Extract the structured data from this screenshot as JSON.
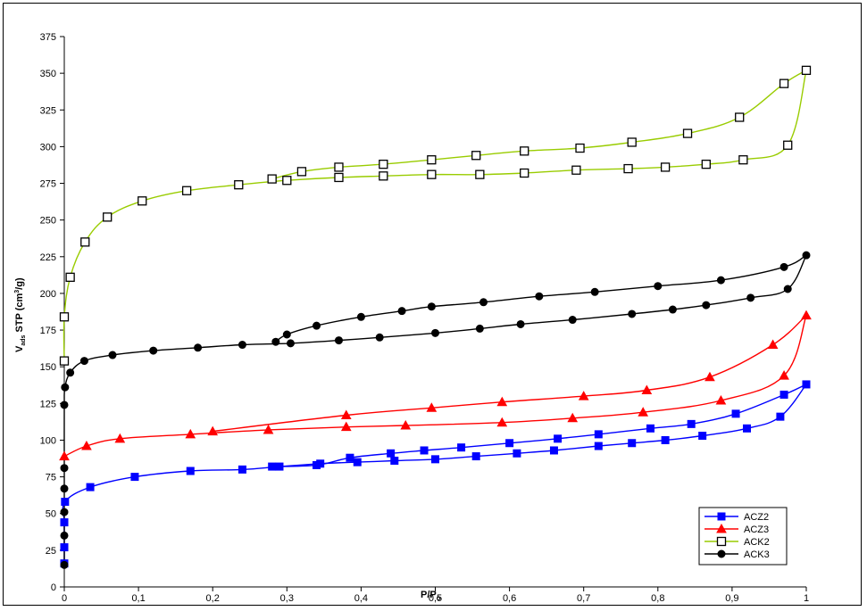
{
  "chart_data": {
    "type": "line",
    "title": "",
    "xlabel_main": "P/P",
    "xlabel_sub": "o",
    "ylabel_main": "V",
    "ylabel_sub": "ads",
    "ylabel_rest": " STP (cm",
    "ylabel_sup": "3",
    "ylabel_end": "/g)",
    "xlim": [
      0,
      1
    ],
    "ylim": [
      0,
      375
    ],
    "xticks": [
      "0",
      "0,1",
      "0,2",
      "0,3",
      "0,4",
      "0,5",
      "0,6",
      "0,7",
      "0,8",
      "0,9",
      "1"
    ],
    "yticks": [
      "0",
      "25",
      "50",
      "75",
      "100",
      "125",
      "150",
      "175",
      "200",
      "225",
      "250",
      "275",
      "300",
      "325",
      "350",
      "375"
    ],
    "grid": false,
    "legend_position": "bottom-right",
    "series": [
      {
        "name": "ACZ2",
        "color": "#0000ff",
        "marker": "square-filled",
        "adsorption": [
          [
            0.0,
            16
          ],
          [
            0.0,
            27
          ],
          [
            0.0,
            44
          ],
          [
            0.001,
            58
          ],
          [
            0.035,
            68
          ],
          [
            0.095,
            75
          ],
          [
            0.17,
            79
          ],
          [
            0.24,
            80
          ],
          [
            0.29,
            82
          ],
          [
            0.345,
            84
          ],
          [
            0.395,
            85
          ],
          [
            0.445,
            86
          ],
          [
            0.5,
            87
          ],
          [
            0.555,
            89
          ],
          [
            0.61,
            91
          ],
          [
            0.66,
            93
          ],
          [
            0.72,
            96
          ],
          [
            0.765,
            98
          ],
          [
            0.81,
            100
          ],
          [
            0.86,
            103
          ],
          [
            0.92,
            108
          ],
          [
            0.965,
            116
          ],
          [
            1.0,
            138
          ]
        ],
        "desorption": [
          [
            1.0,
            138
          ],
          [
            0.97,
            131
          ],
          [
            0.905,
            118
          ],
          [
            0.845,
            111
          ],
          [
            0.79,
            108
          ],
          [
            0.72,
            104
          ],
          [
            0.665,
            101
          ],
          [
            0.6,
            98
          ],
          [
            0.535,
            95
          ],
          [
            0.485,
            93
          ],
          [
            0.44,
            91
          ],
          [
            0.385,
            88
          ],
          [
            0.34,
            83
          ],
          [
            0.28,
            82
          ]
        ]
      },
      {
        "name": "ACZ3",
        "color": "#ff0000",
        "marker": "triangle-filled",
        "adsorption": [
          [
            0.0,
            89
          ],
          [
            0.03,
            96
          ],
          [
            0.075,
            101
          ],
          [
            0.17,
            104
          ],
          [
            0.275,
            107
          ],
          [
            0.38,
            109
          ],
          [
            0.46,
            110
          ],
          [
            0.59,
            112
          ],
          [
            0.685,
            115
          ],
          [
            0.78,
            119
          ],
          [
            0.885,
            127
          ],
          [
            0.97,
            144
          ],
          [
            1.0,
            185
          ]
        ],
        "desorption": [
          [
            1.0,
            185
          ],
          [
            0.955,
            165
          ],
          [
            0.87,
            143
          ],
          [
            0.785,
            134
          ],
          [
            0.7,
            130
          ],
          [
            0.59,
            126
          ],
          [
            0.495,
            122
          ],
          [
            0.38,
            117
          ],
          [
            0.2,
            106
          ]
        ]
      },
      {
        "name": "ACK2",
        "color": "#99cc00",
        "marker": "square-open",
        "adsorption": [
          [
            0.0,
            154
          ],
          [
            0.0,
            184
          ],
          [
            0.008,
            211
          ],
          [
            0.028,
            235
          ],
          [
            0.058,
            252
          ],
          [
            0.105,
            263
          ],
          [
            0.165,
            270
          ],
          [
            0.235,
            274
          ],
          [
            0.3,
            277
          ],
          [
            0.37,
            279
          ],
          [
            0.43,
            280
          ],
          [
            0.495,
            281
          ],
          [
            0.56,
            281
          ],
          [
            0.62,
            282
          ],
          [
            0.69,
            284
          ],
          [
            0.76,
            285
          ],
          [
            0.81,
            286
          ],
          [
            0.865,
            288
          ],
          [
            0.915,
            291
          ],
          [
            0.975,
            301
          ],
          [
            1.0,
            352
          ]
        ],
        "desorption": [
          [
            1.0,
            352
          ],
          [
            0.97,
            343
          ],
          [
            0.91,
            320
          ],
          [
            0.84,
            309
          ],
          [
            0.765,
            303
          ],
          [
            0.695,
            299
          ],
          [
            0.62,
            297
          ],
          [
            0.555,
            294
          ],
          [
            0.495,
            291
          ],
          [
            0.43,
            288
          ],
          [
            0.37,
            286
          ],
          [
            0.32,
            283
          ],
          [
            0.28,
            278
          ]
        ]
      },
      {
        "name": "ACK3",
        "color": "#000000",
        "marker": "circle-filled",
        "adsorption": [
          [
            0.0,
            15
          ],
          [
            0.0,
            35
          ],
          [
            0.0,
            51
          ],
          [
            0.0,
            67
          ],
          [
            0.0,
            81
          ],
          [
            0.0,
            124
          ],
          [
            0.001,
            136
          ],
          [
            0.008,
            146
          ],
          [
            0.027,
            154
          ],
          [
            0.065,
            158
          ],
          [
            0.12,
            161
          ],
          [
            0.18,
            163
          ],
          [
            0.24,
            165
          ],
          [
            0.305,
            166
          ],
          [
            0.37,
            168
          ],
          [
            0.425,
            170
          ],
          [
            0.5,
            173
          ],
          [
            0.56,
            176
          ],
          [
            0.615,
            179
          ],
          [
            0.685,
            182
          ],
          [
            0.765,
            186
          ],
          [
            0.82,
            189
          ],
          [
            0.865,
            192
          ],
          [
            0.925,
            197
          ],
          [
            0.975,
            203
          ],
          [
            1.0,
            226
          ]
        ],
        "desorption": [
          [
            1.0,
            226
          ],
          [
            0.97,
            218
          ],
          [
            0.885,
            209
          ],
          [
            0.8,
            205
          ],
          [
            0.715,
            201
          ],
          [
            0.64,
            198
          ],
          [
            0.565,
            194
          ],
          [
            0.495,
            191
          ],
          [
            0.455,
            188
          ],
          [
            0.4,
            184
          ],
          [
            0.34,
            178
          ],
          [
            0.3,
            172
          ],
          [
            0.285,
            167
          ]
        ]
      }
    ]
  }
}
